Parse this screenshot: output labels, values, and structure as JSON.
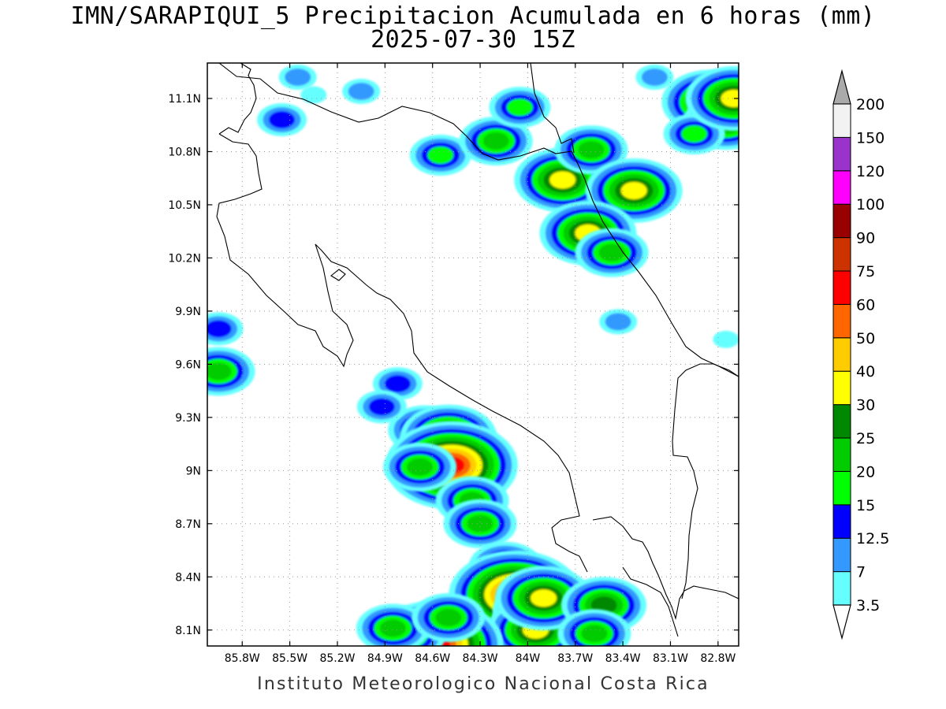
{
  "title": {
    "line1": "IMN/SARAPIQUI_5 Precipitacion Acumulada en 6 horas (mm)",
    "line2": "2025-07-30 15Z"
  },
  "footer": "Instituto Meteorologico Nacional Costa Rica",
  "map": {
    "lat_ticks": [
      {
        "value": 11.1,
        "label": "11.1N"
      },
      {
        "value": 10.8,
        "label": "10.8N"
      },
      {
        "value": 10.5,
        "label": "10.5N"
      },
      {
        "value": 10.2,
        "label": "10.2N"
      },
      {
        "value": 9.9,
        "label": "9.9N"
      },
      {
        "value": 9.6,
        "label": "9.6N"
      },
      {
        "value": 9.3,
        "label": "9.3N"
      },
      {
        "value": 9.0,
        "label": "9N"
      },
      {
        "value": 8.7,
        "label": "8.7N"
      },
      {
        "value": 8.4,
        "label": "8.4N"
      },
      {
        "value": 8.1,
        "label": "8.1N"
      }
    ],
    "lon_ticks": [
      {
        "value": -85.8,
        "label": "85.8W"
      },
      {
        "value": -85.5,
        "label": "85.5W"
      },
      {
        "value": -85.2,
        "label": "85.2W"
      },
      {
        "value": -84.9,
        "label": "84.9W"
      },
      {
        "value": -84.6,
        "label": "84.6W"
      },
      {
        "value": -84.3,
        "label": "84.3W"
      },
      {
        "value": -84.0,
        "label": "84W"
      },
      {
        "value": -83.7,
        "label": "83.7W"
      },
      {
        "value": -83.4,
        "label": "83.4W"
      },
      {
        "value": -83.1,
        "label": "83.1W"
      },
      {
        "value": -82.8,
        "label": "82.8W"
      }
    ]
  },
  "colorbar": {
    "levels": [
      {
        "label": "3.5",
        "color": "#66ffff"
      },
      {
        "label": "7",
        "color": "#3399ff"
      },
      {
        "label": "12.5",
        "color": "#0000ff"
      },
      {
        "label": "15",
        "color": "#00ff00"
      },
      {
        "label": "20",
        "color": "#00cc00"
      },
      {
        "label": "25",
        "color": "#008800"
      },
      {
        "label": "30",
        "color": "#ffff00"
      },
      {
        "label": "40",
        "color": "#ffcc00"
      },
      {
        "label": "50",
        "color": "#ff6600"
      },
      {
        "label": "60",
        "color": "#ff0000"
      },
      {
        "label": "75",
        "color": "#cc3300"
      },
      {
        "label": "90",
        "color": "#990000"
      },
      {
        "label": "100",
        "color": "#ff00ff"
      },
      {
        "label": "120",
        "color": "#9933cc"
      },
      {
        "label": "150",
        "color": "#f2f2f2"
      },
      {
        "label": "200",
        "color": "#aaaaaa"
      }
    ]
  },
  "rain_cells": [
    {
      "lon": -85.55,
      "lat": 10.98,
      "level": 2
    },
    {
      "lon": -85.45,
      "lat": 11.22,
      "level": 1
    },
    {
      "lon": -84.55,
      "lat": 10.78,
      "level": 3
    },
    {
      "lon": -84.2,
      "lat": 10.86,
      "level": 4
    },
    {
      "lon": -84.05,
      "lat": 11.05,
      "level": 3
    },
    {
      "lon": -83.78,
      "lat": 10.64,
      "level": 6
    },
    {
      "lon": -83.6,
      "lat": 10.81,
      "level": 4
    },
    {
      "lon": -83.33,
      "lat": 10.58,
      "level": 6
    },
    {
      "lon": -83.62,
      "lat": 10.34,
      "level": 6
    },
    {
      "lon": -83.47,
      "lat": 10.23,
      "level": 4
    },
    {
      "lon": -82.85,
      "lat": 11.08,
      "level": 6
    },
    {
      "lon": -82.75,
      "lat": 10.97,
      "level": 5
    },
    {
      "lon": -82.95,
      "lat": 10.9,
      "level": 3
    },
    {
      "lon": -82.7,
      "lat": 11.1,
      "level": 6
    },
    {
      "lon": -85.95,
      "lat": 9.56,
      "level": 4
    },
    {
      "lon": -85.95,
      "lat": 9.8,
      "level": 2
    },
    {
      "lon": -84.65,
      "lat": 9.23,
      "level": 4
    },
    {
      "lon": -84.5,
      "lat": 9.19,
      "level": 6
    },
    {
      "lon": -84.48,
      "lat": 9.03,
      "level": 9
    },
    {
      "lon": -84.68,
      "lat": 9.02,
      "level": 4
    },
    {
      "lon": -84.35,
      "lat": 8.83,
      "level": 4
    },
    {
      "lon": -84.3,
      "lat": 8.7,
      "level": 4
    },
    {
      "lon": -84.14,
      "lat": 8.46,
      "level": 4
    },
    {
      "lon": -84.08,
      "lat": 8.3,
      "level": 9
    },
    {
      "lon": -83.88,
      "lat": 8.2,
      "level": 7
    },
    {
      "lon": -83.95,
      "lat": 8.1,
      "level": 6
    },
    {
      "lon": -83.9,
      "lat": 8.28,
      "level": 6
    },
    {
      "lon": -83.52,
      "lat": 8.24,
      "level": 5
    },
    {
      "lon": -83.58,
      "lat": 8.08,
      "level": 4
    },
    {
      "lon": -84.57,
      "lat": 8.02,
      "level": 9
    },
    {
      "lon": -84.75,
      "lat": 8.07,
      "level": 4
    },
    {
      "lon": -84.85,
      "lat": 8.11,
      "level": 4
    },
    {
      "lon": -84.5,
      "lat": 8.17,
      "level": 4
    },
    {
      "lon": -84.82,
      "lat": 9.49,
      "level": 2
    },
    {
      "lon": -84.92,
      "lat": 9.36,
      "level": 2
    },
    {
      "lon": -83.43,
      "lat": 9.84,
      "level": 1
    },
    {
      "lon": -85.35,
      "lat": 11.12,
      "level": 0
    },
    {
      "lon": -85.05,
      "lat": 11.14,
      "level": 1
    },
    {
      "lon": -83.2,
      "lat": 11.22,
      "level": 1
    },
    {
      "lon": -82.75,
      "lat": 9.74,
      "level": 0
    }
  ]
}
